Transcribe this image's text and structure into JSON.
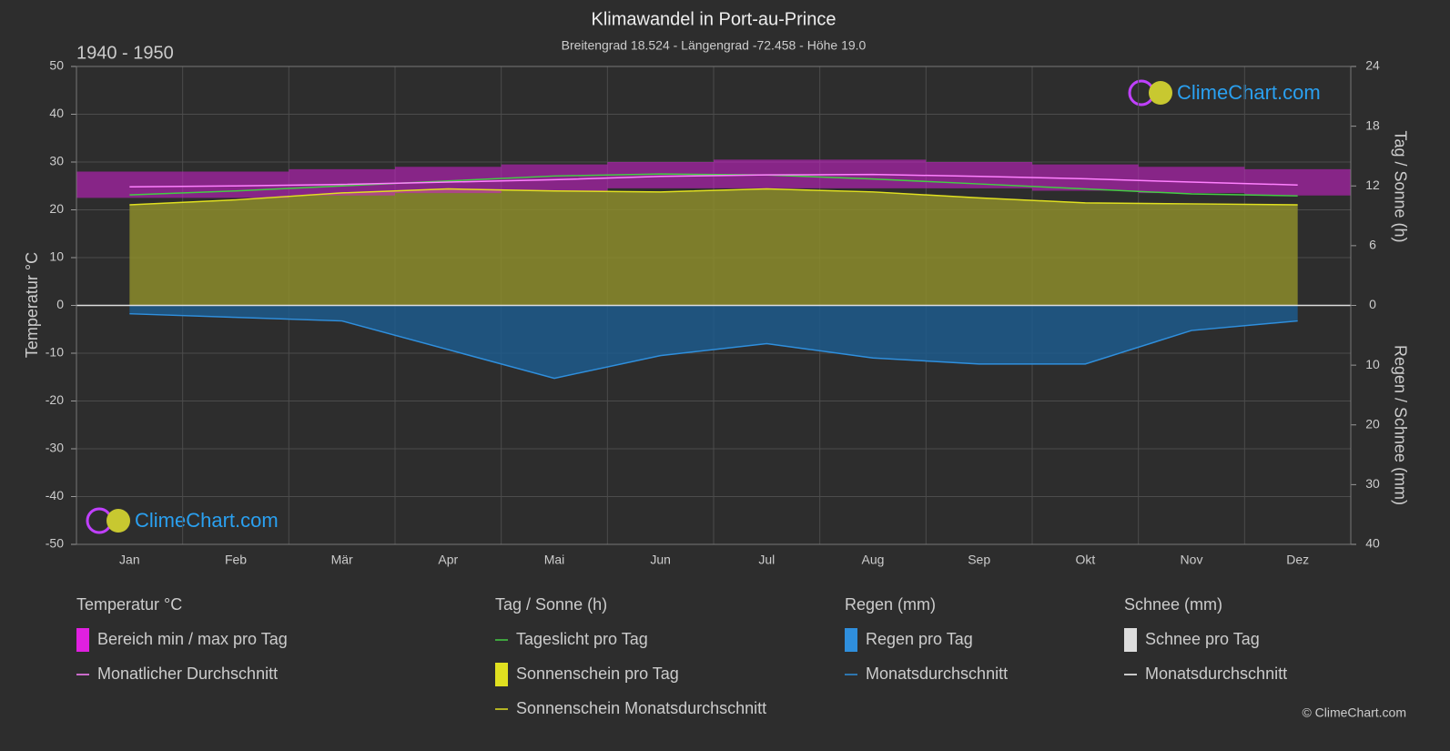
{
  "chart_data": {
    "type": "climate",
    "title": "Klimawandel in Port-au-Prince",
    "subtitle": "Breitengrad 18.524 - Längengrad -72.458 - Höhe 19.0",
    "period": "1940 - 1950",
    "y_label": "Temperatur °C",
    "y2_label": "Tag / Sonne (h)",
    "y3_label": "Regen / Schnee (mm)",
    "logo": "ClimeChart.com",
    "copyright": "© ClimeChart.com",
    "categories": [
      "Jan",
      "Feb",
      "Mär",
      "Apr",
      "Mai",
      "Jun",
      "Jul",
      "Aug",
      "Sep",
      "Okt",
      "Nov",
      "Dez"
    ],
    "ylim": [
      -50,
      50
    ],
    "yticks": [
      -50,
      -40,
      -30,
      -20,
      -10,
      0,
      10,
      20,
      30,
      40,
      50
    ],
    "y2lim": [
      0,
      24
    ],
    "y2ticks": [
      0,
      6,
      12,
      18,
      24
    ],
    "y3lim": [
      0,
      40
    ],
    "y3ticks": [
      0,
      10,
      20,
      30,
      40
    ],
    "grid": true,
    "temp_range": {
      "color": "#d21fd2",
      "min": [
        22.5,
        22.5,
        23,
        23.5,
        24,
        24.5,
        24.5,
        24.5,
        24.5,
        24,
        23.5,
        23
      ],
      "max": [
        28,
        28,
        28.5,
        29,
        29.5,
        30,
        30.5,
        30.5,
        30,
        29.5,
        29,
        28.5
      ]
    },
    "temp_avg": {
      "color": "#ff80ff",
      "values": [
        24.8,
        25.0,
        25.3,
        25.8,
        26.3,
        27.0,
        27.3,
        27.4,
        27.0,
        26.5,
        25.8,
        25.2
      ]
    },
    "daylight": {
      "color": "#44cc44",
      "axis": "y2",
      "values": [
        11.1,
        11.5,
        12.0,
        12.5,
        13.0,
        13.2,
        13.1,
        12.7,
        12.2,
        11.7,
        11.2,
        11.0
      ]
    },
    "sunshine": {
      "color": "#e0e020",
      "fill": "#8c8c2c",
      "axis": "y2",
      "values": [
        10.1,
        10.6,
        11.3,
        11.7,
        11.5,
        11.4,
        11.7,
        11.4,
        10.8,
        10.3,
        10.2,
        10.1
      ]
    },
    "rain": {
      "color": "#2f8fdd",
      "fill": "#1d5a8c",
      "axis": "y3",
      "values": [
        1.4,
        2.0,
        2.6,
        7.4,
        12.2,
        8.4,
        6.4,
        8.8,
        9.8,
        9.8,
        4.2,
        2.6
      ]
    },
    "legend": [
      {
        "title": "Temperatur °C",
        "items": [
          {
            "label": "Bereich min / max pro Tag",
            "color": "#e020e0",
            "swatch": "box"
          },
          {
            "label": "Monatlicher Durchschnitt",
            "color": "#ff80ff",
            "swatch": "line"
          }
        ]
      },
      {
        "title": "Tag / Sonne (h)",
        "items": [
          {
            "label": "Tageslicht pro Tag",
            "color": "#44cc44",
            "swatch": "line"
          },
          {
            "label": "Sonnenschein pro Tag",
            "color": "#e0e020",
            "swatch": "box"
          },
          {
            "label": "Sonnenschein Monatsdurchschnitt",
            "color": "#e0e020",
            "swatch": "line"
          }
        ]
      },
      {
        "title": "Regen (mm)",
        "items": [
          {
            "label": "Regen pro Tag",
            "color": "#2f8fdd",
            "swatch": "box"
          },
          {
            "label": "Monatsdurchschnitt",
            "color": "#2f8fdd",
            "swatch": "line"
          }
        ]
      },
      {
        "title": "Schnee (mm)",
        "items": [
          {
            "label": "Schnee pro Tag",
            "color": "#dddddd",
            "swatch": "box"
          },
          {
            "label": "Monatsdurchschnitt",
            "color": "#ffffff",
            "swatch": "line"
          }
        ]
      }
    ]
  }
}
